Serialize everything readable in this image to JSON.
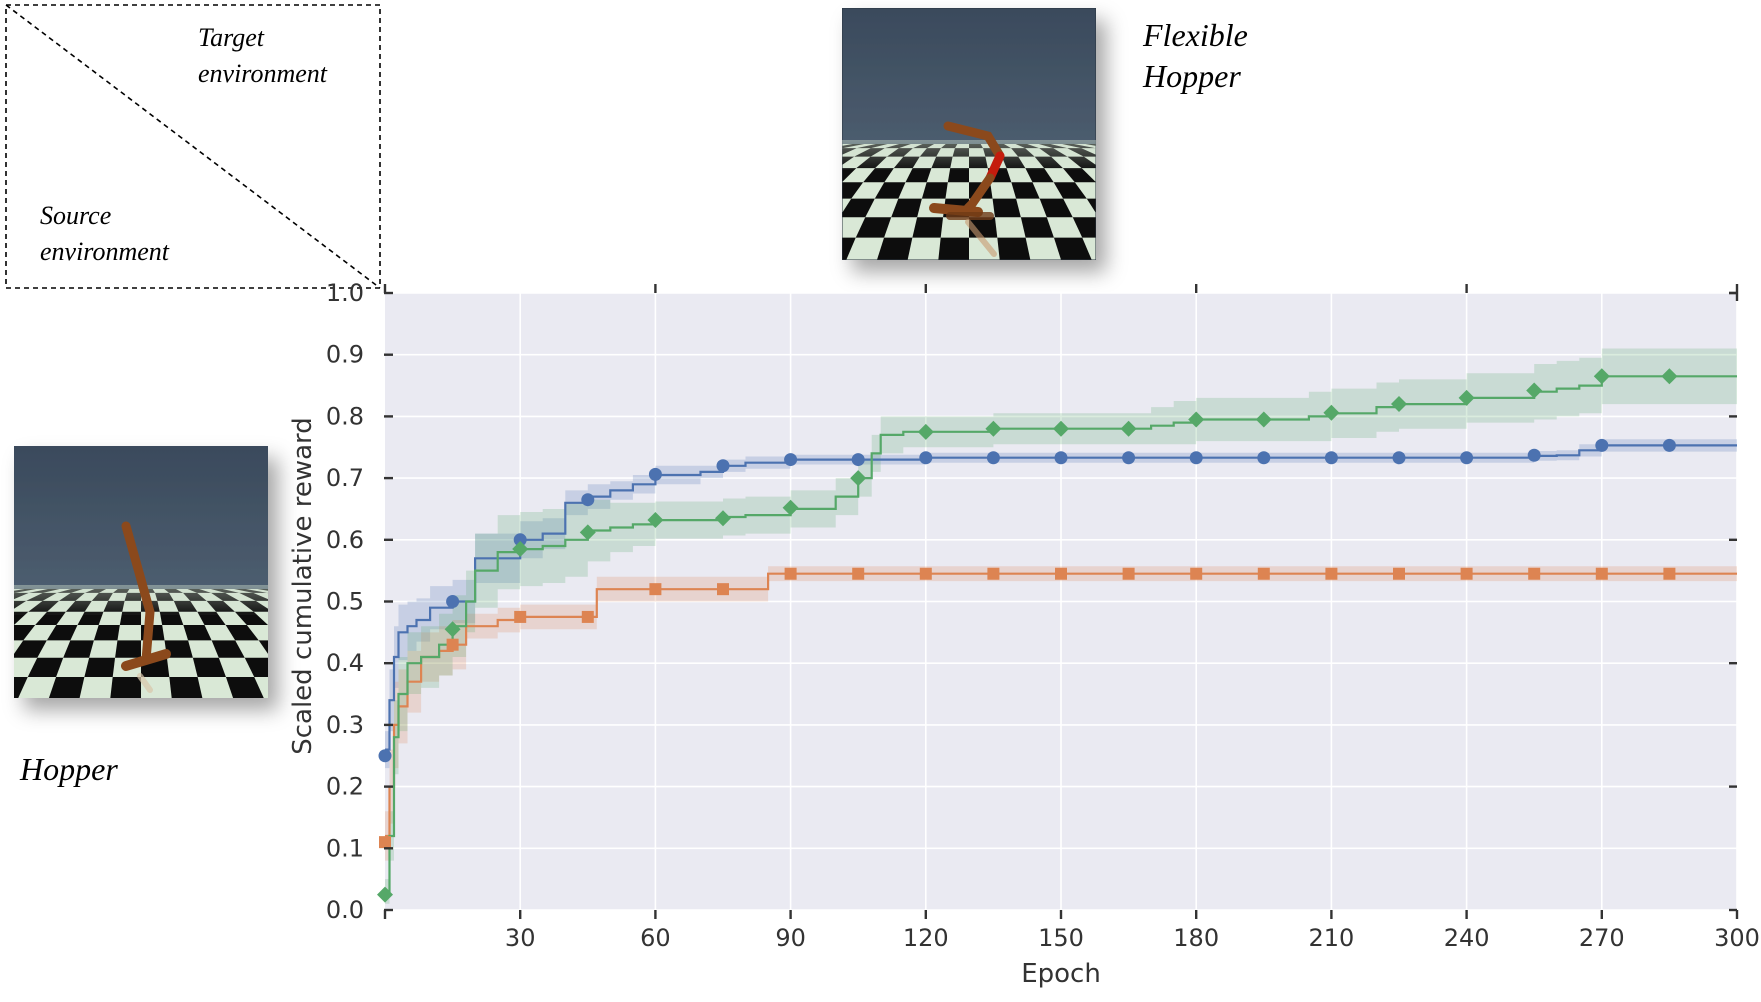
{
  "corner_labels": {
    "target": [
      "Target",
      "environment"
    ],
    "source": [
      "Source",
      "environment"
    ]
  },
  "environments": {
    "target_name": [
      "Flexible",
      "Hopper"
    ],
    "source_name": "Hopper"
  },
  "chart_data": {
    "type": "line",
    "xlabel": "Epoch",
    "ylabel": "Scaled cumulative reward",
    "xlim": [
      0,
      300
    ],
    "ylim": [
      0,
      1.0
    ],
    "x_ticks": [
      30,
      60,
      90,
      120,
      150,
      180,
      210,
      240,
      270,
      300
    ],
    "y_ticks": [
      0.0,
      0.1,
      0.2,
      0.3,
      0.4,
      0.5,
      0.6,
      0.7,
      0.8,
      0.9,
      1.0
    ],
    "grid": true,
    "background": "#eaeaf2",
    "series": [
      {
        "color": "#4c72b0",
        "marker": "circle",
        "x": [
          0,
          1,
          2,
          3,
          5,
          7,
          10,
          15,
          20,
          30,
          35,
          40,
          45,
          50,
          55,
          60,
          70,
          75,
          80,
          90,
          100,
          105,
          110,
          120,
          150,
          180,
          240,
          255,
          260,
          265,
          270,
          285,
          300
        ],
        "y": [
          0.26,
          0.34,
          0.41,
          0.45,
          0.46,
          0.47,
          0.49,
          0.5,
          0.57,
          0.6,
          0.61,
          0.66,
          0.67,
          0.68,
          0.69,
          0.705,
          0.71,
          0.72,
          0.725,
          0.73,
          0.73,
          0.73,
          0.73,
          0.733,
          0.733,
          0.733,
          0.733,
          0.736,
          0.737,
          0.745,
          0.753,
          0.753,
          0.753
        ],
        "band": [
          0.03,
          0.05,
          0.05,
          0.045,
          0.04,
          0.035,
          0.035,
          0.035,
          0.04,
          0.03,
          0.025,
          0.02,
          0.02,
          0.015,
          0.015,
          0.015,
          0.01,
          0.01,
          0.01,
          0.008,
          0.008,
          0.008,
          0.008,
          0.008,
          0.008,
          0.008,
          0.008,
          0.008,
          0.008,
          0.01,
          0.01,
          0.01,
          0.01
        ],
        "marker_x": [
          0,
          15,
          30,
          45,
          60,
          75,
          90,
          105,
          120,
          135,
          150,
          165,
          180,
          195,
          210,
          225,
          240,
          255,
          270,
          285
        ],
        "marker_y": [
          0.25,
          0.5,
          0.6,
          0.665,
          0.706,
          0.72,
          0.73,
          0.73,
          0.733,
          0.733,
          0.733,
          0.733,
          0.733,
          0.733,
          0.733,
          0.733,
          0.733,
          0.737,
          0.753,
          0.753
        ]
      },
      {
        "color": "#dd8452",
        "marker": "square",
        "x": [
          0,
          1,
          2,
          3,
          5,
          8,
          12,
          15,
          18,
          25,
          30,
          45,
          47,
          60,
          75,
          83,
          85,
          100,
          150,
          200,
          250,
          300
        ],
        "y": [
          0.12,
          0.2,
          0.3,
          0.33,
          0.37,
          0.41,
          0.42,
          0.43,
          0.46,
          0.47,
          0.475,
          0.475,
          0.52,
          0.52,
          0.52,
          0.52,
          0.545,
          0.545,
          0.545,
          0.545,
          0.545,
          0.545
        ],
        "band": [
          0.04,
          0.06,
          0.07,
          0.06,
          0.05,
          0.04,
          0.04,
          0.04,
          0.02,
          0.02,
          0.02,
          0.02,
          0.02,
          0.02,
          0.02,
          0.02,
          0.012,
          0.012,
          0.012,
          0.012,
          0.012,
          0.012
        ],
        "marker_x": [
          0,
          15,
          30,
          45,
          60,
          75,
          90,
          105,
          120,
          135,
          150,
          165,
          180,
          195,
          210,
          225,
          240,
          255,
          270,
          285
        ],
        "marker_y": [
          0.11,
          0.43,
          0.475,
          0.475,
          0.52,
          0.52,
          0.545,
          0.545,
          0.545,
          0.545,
          0.545,
          0.545,
          0.545,
          0.545,
          0.545,
          0.545,
          0.545,
          0.545,
          0.545,
          0.545
        ]
      },
      {
        "color": "#55a868",
        "marker": "diamond",
        "x": [
          0,
          1,
          2,
          3,
          5,
          8,
          12,
          15,
          18,
          20,
          25,
          30,
          35,
          40,
          45,
          50,
          55,
          60,
          75,
          80,
          90,
          100,
          105,
          108,
          110,
          115,
          120,
          135,
          165,
          170,
          175,
          180,
          195,
          205,
          210,
          220,
          225,
          240,
          255,
          260,
          265,
          270,
          285,
          300
        ],
        "y": [
          0.03,
          0.12,
          0.28,
          0.35,
          0.4,
          0.41,
          0.43,
          0.46,
          0.5,
          0.55,
          0.58,
          0.585,
          0.59,
          0.6,
          0.615,
          0.62,
          0.625,
          0.632,
          0.637,
          0.64,
          0.65,
          0.67,
          0.7,
          0.74,
          0.77,
          0.775,
          0.775,
          0.78,
          0.78,
          0.785,
          0.79,
          0.795,
          0.795,
          0.8,
          0.805,
          0.815,
          0.82,
          0.83,
          0.84,
          0.845,
          0.85,
          0.865,
          0.865,
          0.865
        ],
        "band": [
          0.02,
          0.04,
          0.06,
          0.06,
          0.05,
          0.05,
          0.05,
          0.05,
          0.05,
          0.06,
          0.06,
          0.06,
          0.06,
          0.06,
          0.05,
          0.04,
          0.035,
          0.03,
          0.03,
          0.03,
          0.03,
          0.03,
          0.03,
          0.03,
          0.03,
          0.025,
          0.025,
          0.025,
          0.025,
          0.03,
          0.035,
          0.035,
          0.035,
          0.04,
          0.04,
          0.04,
          0.04,
          0.04,
          0.045,
          0.045,
          0.045,
          0.045,
          0.045,
          0.045
        ],
        "marker_x": [
          0,
          15,
          30,
          45,
          60,
          75,
          90,
          105,
          120,
          135,
          150,
          165,
          180,
          195,
          210,
          225,
          240,
          255,
          270,
          285
        ],
        "marker_y": [
          0.025,
          0.455,
          0.585,
          0.612,
          0.632,
          0.635,
          0.652,
          0.7,
          0.775,
          0.78,
          0.78,
          0.78,
          0.795,
          0.795,
          0.806,
          0.82,
          0.83,
          0.842,
          0.865,
          0.865
        ]
      }
    ]
  }
}
